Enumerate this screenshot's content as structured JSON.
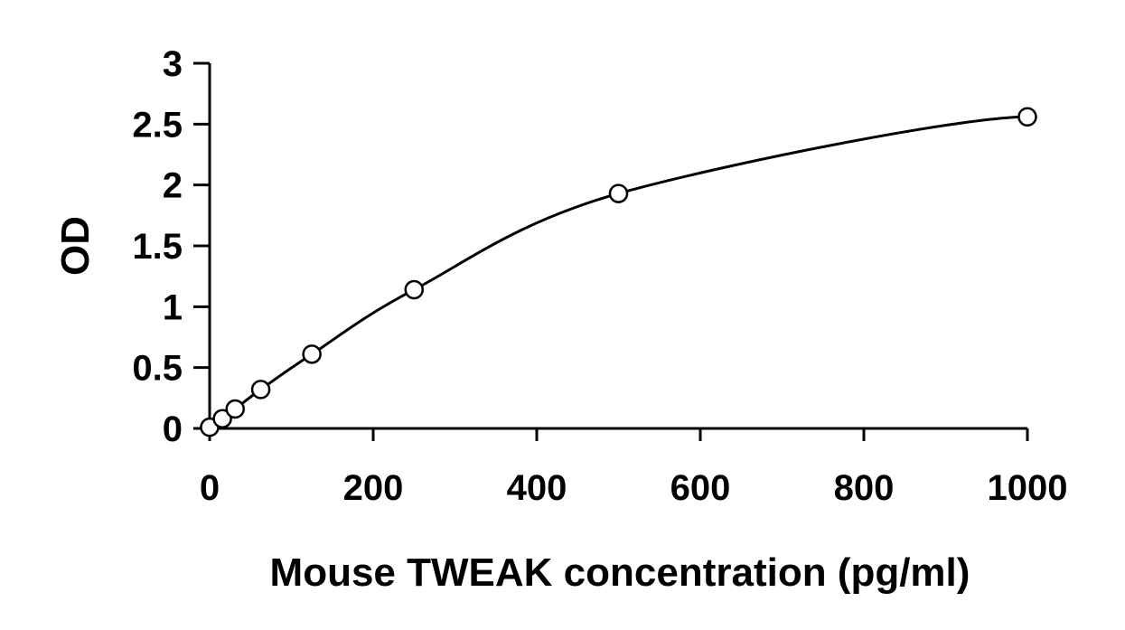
{
  "chart_data": {
    "type": "scatter",
    "xlabel": "Mouse TWEAK concentration (pg/ml)",
    "ylabel": "OD",
    "xlim": [
      0,
      1000
    ],
    "ylim": [
      0,
      3
    ],
    "x_ticks": [
      "0",
      "200",
      "400",
      "600",
      "800",
      "1000"
    ],
    "y_ticks": [
      "0",
      "0.5",
      "1",
      "1.5",
      "2",
      "2.5",
      "3"
    ],
    "grid": false,
    "legend": "none",
    "series": [
      {
        "points": [
          {
            "x": 0,
            "y": 0.01
          },
          {
            "x": 15.6,
            "y": 0.08
          },
          {
            "x": 31.2,
            "y": 0.16
          },
          {
            "x": 62.5,
            "y": 0.32
          },
          {
            "x": 125,
            "y": 0.61
          },
          {
            "x": 250,
            "y": 1.14
          },
          {
            "x": 500,
            "y": 1.93
          },
          {
            "x": 1000,
            "y": 2.56
          }
        ],
        "fit": "smooth standard curve"
      }
    ]
  }
}
